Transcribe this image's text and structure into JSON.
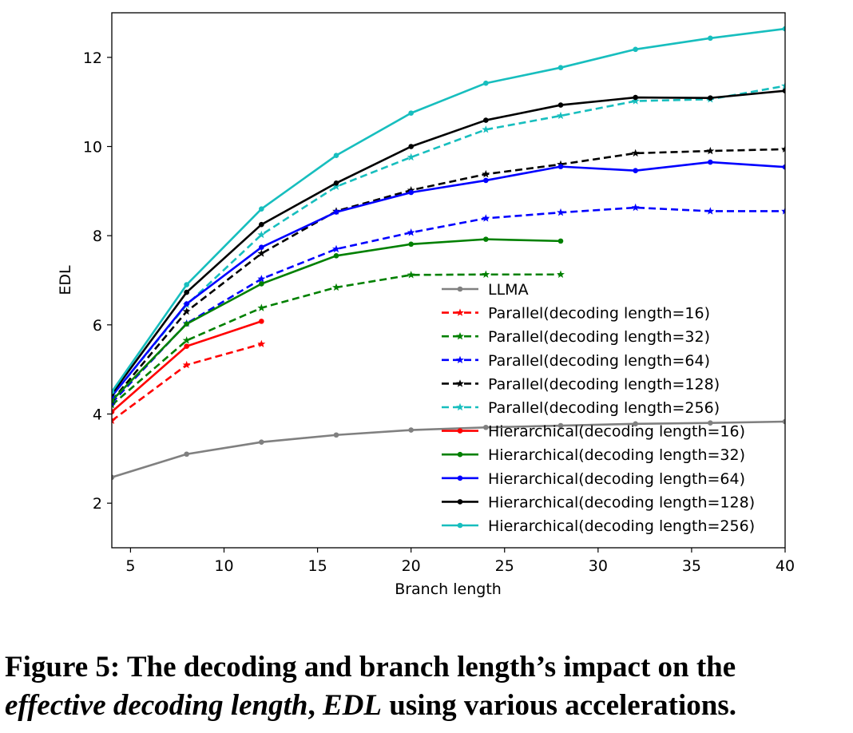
{
  "caption": {
    "label": "Figure 5:",
    "text1": "The decoding and branch length’s impact on the",
    "em1": "effective decoding length",
    "sep": ", ",
    "em2": "EDL",
    "text2": " using various accelerations."
  },
  "chart_data": {
    "type": "line",
    "xlabel": "Branch length",
    "ylabel": "EDL",
    "xlim": [
      4,
      40
    ],
    "ylim": [
      1,
      13
    ],
    "xticks": [
      5,
      10,
      15,
      20,
      25,
      30,
      35,
      40
    ],
    "yticks": [
      2,
      4,
      6,
      8,
      10,
      12
    ],
    "grid": false,
    "legend_position": "lower-right",
    "series": [
      {
        "name": "LLMA",
        "color": "#808080",
        "style": "solid",
        "marker": "dot",
        "x": [
          4,
          8,
          12,
          16,
          20,
          24,
          28,
          32,
          36,
          40
        ],
        "y": [
          2.58,
          3.1,
          3.37,
          3.53,
          3.64,
          3.7,
          3.74,
          3.78,
          3.8,
          3.83
        ]
      },
      {
        "name": "Parallel(decoding length=16)",
        "color": "#ff0000",
        "style": "dashed",
        "marker": "star",
        "x": [
          4,
          8,
          12
        ],
        "y": [
          3.85,
          5.1,
          5.57
        ]
      },
      {
        "name": "Parallel(decoding length=32)",
        "color": "#008000",
        "style": "dashed",
        "marker": "star",
        "x": [
          4,
          8,
          12,
          16,
          20,
          24,
          28
        ],
        "y": [
          4.2,
          5.65,
          6.38,
          6.84,
          7.12,
          7.13,
          7.13
        ]
      },
      {
        "name": "Parallel(decoding length=64)",
        "color": "#0000ff",
        "style": "dashed",
        "marker": "star",
        "x": [
          4,
          8,
          12,
          16,
          20,
          24,
          28,
          32,
          36,
          40
        ],
        "y": [
          4.25,
          6.03,
          7.03,
          7.7,
          8.07,
          8.39,
          8.52,
          8.63,
          8.55,
          8.55
        ]
      },
      {
        "name": "Parallel(decoding length=128)",
        "color": "#000000",
        "style": "dashed",
        "marker": "star",
        "x": [
          4,
          8,
          12,
          16,
          20,
          24,
          28,
          32,
          36,
          40
        ],
        "y": [
          4.3,
          6.3,
          7.6,
          8.55,
          9.02,
          9.38,
          9.6,
          9.85,
          9.9,
          9.94
        ]
      },
      {
        "name": "Parallel(decoding length=256)",
        "color": "#17bebe",
        "style": "dashed",
        "marker": "star",
        "x": [
          4,
          8,
          12,
          16,
          20,
          24,
          28,
          32,
          36,
          40
        ],
        "y": [
          4.4,
          6.45,
          8.02,
          9.1,
          9.76,
          10.38,
          10.69,
          11.02,
          11.06,
          11.36
        ]
      },
      {
        "name": "Hierarchical(decoding length=16)",
        "color": "#ff0000",
        "style": "solid",
        "marker": "dot",
        "x": [
          4,
          8,
          12
        ],
        "y": [
          4.05,
          5.52,
          6.08
        ]
      },
      {
        "name": "Hierarchical(decoding length=32)",
        "color": "#008000",
        "style": "solid",
        "marker": "dot",
        "x": [
          4,
          8,
          12,
          16,
          20,
          24,
          28
        ],
        "y": [
          4.3,
          6.02,
          6.92,
          7.55,
          7.81,
          7.92,
          7.88
        ]
      },
      {
        "name": "Hierarchical(decoding length=64)",
        "color": "#0000ff",
        "style": "solid",
        "marker": "dot",
        "x": [
          4,
          8,
          12,
          16,
          20,
          24,
          28,
          32,
          36,
          40
        ],
        "y": [
          4.4,
          6.47,
          7.74,
          8.53,
          8.97,
          9.24,
          9.55,
          9.46,
          9.65,
          9.54
        ]
      },
      {
        "name": "Hierarchical(decoding length=128)",
        "color": "#000000",
        "style": "solid",
        "marker": "dot",
        "x": [
          4,
          8,
          12,
          16,
          20,
          24,
          28,
          32,
          36,
          40
        ],
        "y": [
          4.45,
          6.73,
          8.25,
          9.18,
          10.0,
          10.59,
          10.93,
          11.1,
          11.09,
          11.25
        ]
      },
      {
        "name": "Hierarchical(decoding length=256)",
        "color": "#17bebe",
        "style": "solid",
        "marker": "dot",
        "x": [
          4,
          8,
          12,
          16,
          20,
          24,
          28,
          32,
          36,
          40
        ],
        "y": [
          4.5,
          6.9,
          8.6,
          9.8,
          10.75,
          11.42,
          11.77,
          12.18,
          12.43,
          12.64
        ]
      }
    ]
  }
}
